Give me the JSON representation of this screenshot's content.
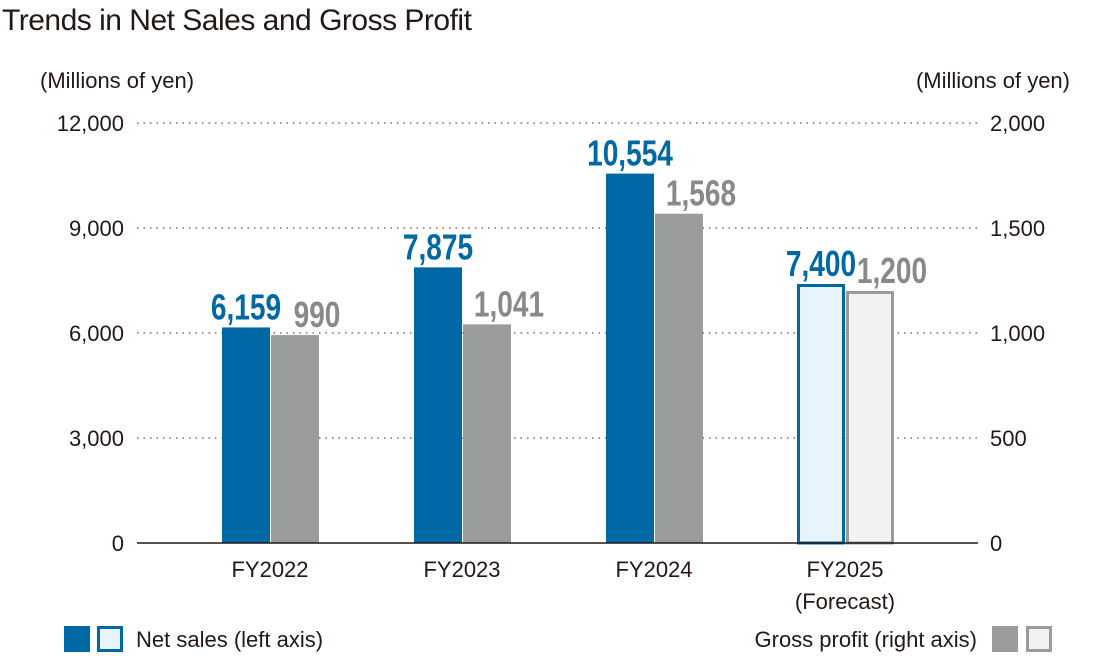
{
  "chart_data": {
    "type": "bar",
    "title": "Trends in Net Sales and Gross Profit",
    "categories": [
      "FY2022",
      "FY2023",
      "FY2024",
      "FY2025"
    ],
    "category_sublabels": [
      "",
      "",
      "",
      "(Forecast)"
    ],
    "left_axis": {
      "label": "(Millions of yen)",
      "ylim": [
        0,
        12000
      ],
      "ticks": [
        "0",
        "3,000",
        "6,000",
        "9,000",
        "12,000"
      ],
      "tick_values": [
        0,
        3000,
        6000,
        9000,
        12000
      ]
    },
    "right_axis": {
      "label": "(Millions of yen)",
      "ylim": [
        0,
        2000
      ],
      "ticks": [
        "0",
        "500",
        "1,000",
        "1,500",
        "2,000"
      ],
      "tick_values": [
        0,
        500,
        1000,
        1500,
        2000
      ]
    },
    "series": [
      {
        "name": "Net sales (left axis)",
        "axis": "left",
        "values": [
          6159,
          7875,
          10554,
          7400
        ],
        "labels": [
          "6,159",
          "7,875",
          "10,554",
          "7,400"
        ],
        "color": "#0068a5",
        "forecast_fill": "#e8f4fc",
        "label_color": "#0068a5"
      },
      {
        "name": "Gross profit (right axis)",
        "axis": "right",
        "values": [
          990,
          1041,
          1568,
          1200
        ],
        "labels": [
          "990",
          "1,041",
          "1,568",
          "1,200"
        ],
        "color": "#9a9b9d",
        "forecast_fill": "#f2f2f2",
        "label_color": "#898989"
      }
    ],
    "forecast_index": 3,
    "grid": true,
    "legend_placement": "bottom"
  }
}
